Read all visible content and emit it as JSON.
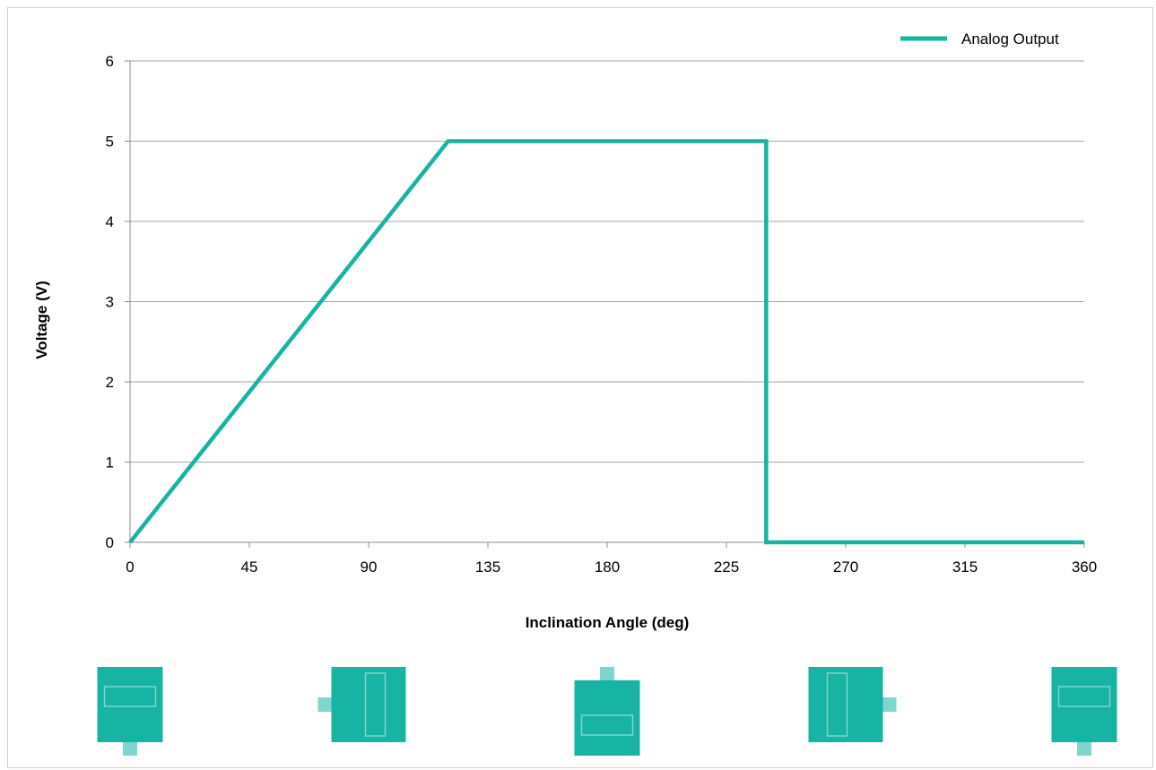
{
  "chart_data": {
    "type": "line",
    "title": "",
    "xlabel": "Inclination Angle (deg)",
    "ylabel": "Voltage (V)",
    "xlim": [
      0,
      360
    ],
    "ylim": [
      0,
      6
    ],
    "xticks": [
      0,
      45,
      90,
      135,
      180,
      225,
      270,
      315,
      360
    ],
    "yticks": [
      0,
      1,
      2,
      3,
      4,
      5,
      6
    ],
    "grid": "horizontal",
    "legend_position": "top-right",
    "series": [
      {
        "name": "Analog Output",
        "color": "#17b3a3",
        "points": [
          [
            0,
            0
          ],
          [
            120,
            5
          ],
          [
            240,
            5
          ],
          [
            240,
            0
          ],
          [
            360,
            0
          ]
        ]
      }
    ]
  },
  "orientation_icons": [
    {
      "name": "sensor-orientation-0-icon",
      "angle": 0,
      "connector": "bottom",
      "window": "horizontal"
    },
    {
      "name": "sensor-orientation-90-icon",
      "angle": 90,
      "connector": "left",
      "window": "vertical"
    },
    {
      "name": "sensor-orientation-180-icon",
      "angle": 180,
      "connector": "top",
      "window": "horizontal"
    },
    {
      "name": "sensor-orientation-270-icon",
      "angle": 270,
      "connector": "right",
      "window": "vertical"
    },
    {
      "name": "sensor-orientation-360-icon",
      "angle": 360,
      "connector": "bottom",
      "window": "horizontal"
    }
  ],
  "colors": {
    "series": "#17b3a3",
    "icon_fill": "#17b3a3",
    "icon_accent": "#7fd6cc",
    "grid": "#a6a6a6",
    "axis": "#8c8c8c"
  }
}
